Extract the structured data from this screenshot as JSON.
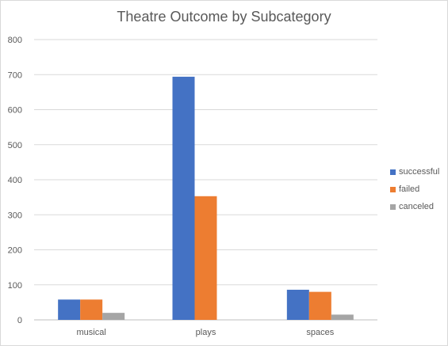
{
  "chart_data": {
    "type": "bar",
    "title": "Theatre Outcome by Subcategory",
    "categories": [
      "musical",
      "plays",
      "spaces"
    ],
    "series": [
      {
        "name": "successful",
        "color": "#4472c4",
        "values": [
          58,
          694,
          86
        ]
      },
      {
        "name": "failed",
        "color": "#ed7d31",
        "values": [
          58,
          353,
          80
        ]
      },
      {
        "name": "canceled",
        "color": "#a5a5a5",
        "values": [
          20,
          0,
          15
        ]
      }
    ],
    "ylim": [
      0,
      800
    ],
    "yticks": [
      0,
      100,
      200,
      300,
      400,
      500,
      600,
      700,
      800
    ],
    "grid": true,
    "legend_position": "right"
  }
}
